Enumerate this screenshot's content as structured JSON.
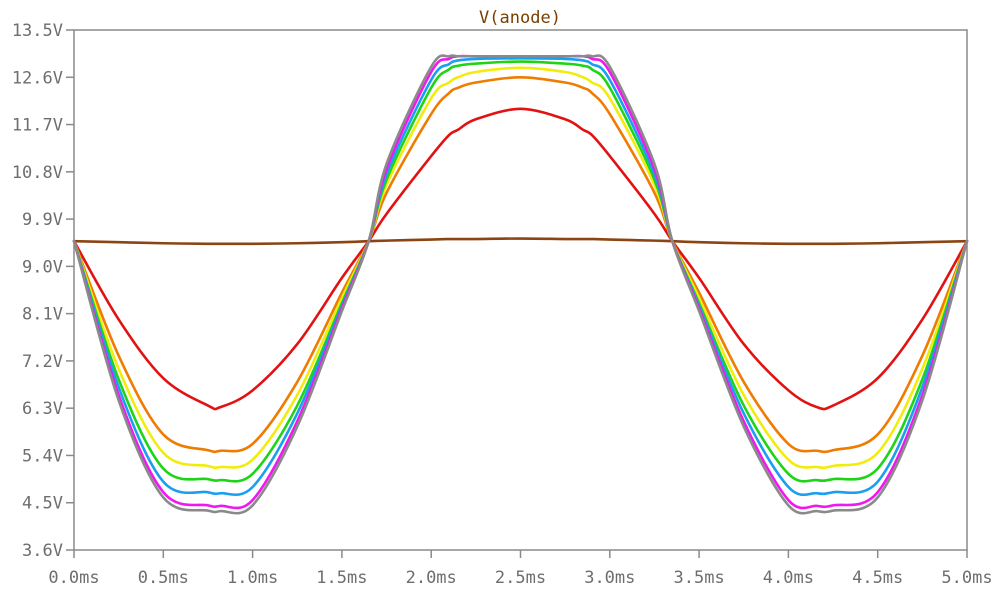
{
  "chart_data": {
    "type": "line",
    "title": "V(anode)",
    "title_color": "#7a3e00",
    "xlim": [
      0.0,
      5.0
    ],
    "ylim": [
      3.6,
      13.5
    ],
    "x_ticks": [
      {
        "value": 0.0,
        "label": "0.0ms"
      },
      {
        "value": 0.5,
        "label": "0.5ms"
      },
      {
        "value": 1.0,
        "label": "1.0ms"
      },
      {
        "value": 1.5,
        "label": "1.5ms"
      },
      {
        "value": 2.0,
        "label": "2.0ms"
      },
      {
        "value": 2.5,
        "label": "2.5ms"
      },
      {
        "value": 3.0,
        "label": "3.0ms"
      },
      {
        "value": 3.5,
        "label": "3.5ms"
      },
      {
        "value": 4.0,
        "label": "4.0ms"
      },
      {
        "value": 4.5,
        "label": "4.5ms"
      },
      {
        "value": 5.0,
        "label": "5.0ms"
      }
    ],
    "y_ticks": [
      {
        "value": 3.6,
        "label": "3.6V"
      },
      {
        "value": 4.5,
        "label": "4.5V"
      },
      {
        "value": 5.4,
        "label": "5.4V"
      },
      {
        "value": 6.3,
        "label": "6.3V"
      },
      {
        "value": 7.2,
        "label": "7.2V"
      },
      {
        "value": 8.1,
        "label": "8.1V"
      },
      {
        "value": 9.0,
        "label": "9.0V"
      },
      {
        "value": 9.9,
        "label": "9.9V"
      },
      {
        "value": 10.8,
        "label": "10.8V"
      },
      {
        "value": 11.7,
        "label": "11.7V"
      },
      {
        "value": 12.6,
        "label": "12.6V"
      },
      {
        "value": 13.5,
        "label": "13.5V"
      }
    ],
    "x": [
      0.0,
      0.25,
      0.5,
      0.75,
      0.82,
      1.0,
      1.25,
      1.5,
      1.65,
      1.75,
      2.0,
      2.1,
      2.15,
      2.25,
      2.5,
      2.75,
      2.85,
      2.9,
      3.0,
      3.25,
      3.35,
      3.5,
      3.75,
      4.0,
      4.16,
      4.25,
      4.5,
      4.75,
      5.0
    ],
    "series": [
      {
        "color": "#8b4513",
        "values": [
          9.48,
          9.46,
          9.44,
          9.43,
          9.43,
          9.43,
          9.44,
          9.46,
          9.48,
          9.49,
          9.51,
          9.52,
          9.52,
          9.52,
          9.53,
          9.52,
          9.52,
          9.52,
          9.51,
          9.49,
          9.48,
          9.46,
          9.44,
          9.43,
          9.43,
          9.43,
          9.44,
          9.46,
          9.48
        ]
      },
      {
        "color": "#e21212",
        "values": [
          9.48,
          7.99,
          6.87,
          6.35,
          6.32,
          6.64,
          7.52,
          8.78,
          9.48,
          10.0,
          11.1,
          11.5,
          11.6,
          11.8,
          12.0,
          11.8,
          11.6,
          11.5,
          11.1,
          10.0,
          9.48,
          8.78,
          7.52,
          6.64,
          6.32,
          6.35,
          6.87,
          7.99,
          9.48
        ]
      },
      {
        "color": "#ef7c00",
        "values": [
          9.48,
          7.3,
          5.8,
          5.5,
          5.49,
          5.62,
          6.8,
          8.5,
          9.48,
          10.4,
          11.9,
          12.3,
          12.4,
          12.5,
          12.6,
          12.5,
          12.4,
          12.3,
          11.9,
          10.4,
          9.48,
          8.5,
          6.8,
          5.62,
          5.49,
          5.5,
          5.8,
          7.3,
          9.48
        ]
      },
      {
        "color": "#f2ec0c",
        "values": [
          9.48,
          7.05,
          5.45,
          5.2,
          5.18,
          5.32,
          6.55,
          8.4,
          9.48,
          10.55,
          12.2,
          12.5,
          12.6,
          12.7,
          12.78,
          12.7,
          12.6,
          12.5,
          12.2,
          10.55,
          9.48,
          8.4,
          6.55,
          5.32,
          5.18,
          5.2,
          5.45,
          7.05,
          9.48
        ]
      },
      {
        "color": "#1ed416",
        "values": [
          9.48,
          6.85,
          5.15,
          4.95,
          4.93,
          5.05,
          6.35,
          8.3,
          9.48,
          10.65,
          12.4,
          12.75,
          12.82,
          12.86,
          12.9,
          12.86,
          12.82,
          12.75,
          12.4,
          10.65,
          9.48,
          8.3,
          6.35,
          5.05,
          4.93,
          4.95,
          5.15,
          6.85,
          9.48
        ]
      },
      {
        "color": "#1a9ff0",
        "values": [
          9.48,
          6.7,
          4.9,
          4.7,
          4.68,
          4.8,
          6.2,
          8.25,
          9.48,
          10.75,
          12.55,
          12.85,
          12.92,
          12.95,
          12.96,
          12.95,
          12.92,
          12.85,
          12.55,
          10.75,
          9.48,
          8.25,
          6.2,
          4.8,
          4.68,
          4.7,
          4.9,
          6.7,
          9.48
        ]
      },
      {
        "color": "#f018f0",
        "values": [
          9.48,
          6.55,
          4.7,
          4.45,
          4.44,
          4.55,
          6.05,
          8.2,
          9.48,
          10.85,
          12.7,
          12.95,
          13.0,
          13.0,
          13.0,
          13.0,
          13.0,
          12.95,
          12.7,
          10.85,
          9.48,
          8.2,
          6.05,
          4.55,
          4.44,
          4.45,
          4.7,
          6.55,
          9.48
        ]
      },
      {
        "color": "#8a8a8a",
        "values": [
          9.48,
          6.45,
          4.6,
          4.35,
          4.34,
          4.45,
          5.95,
          8.15,
          9.48,
          10.95,
          12.8,
          13.0,
          13.0,
          13.0,
          13.0,
          13.0,
          13.0,
          13.0,
          12.8,
          10.95,
          9.48,
          8.15,
          5.95,
          4.45,
          4.34,
          4.35,
          4.6,
          6.45,
          9.48
        ]
      }
    ]
  }
}
